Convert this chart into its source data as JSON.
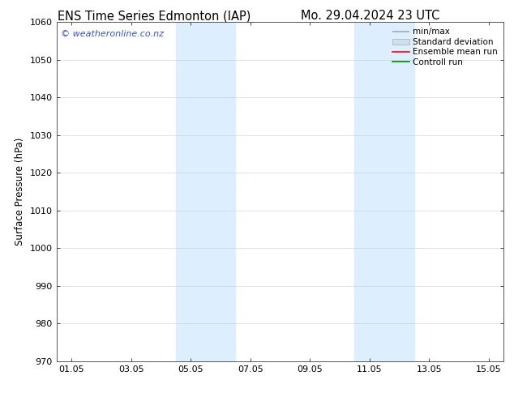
{
  "title_left": "ENS Time Series Edmonton (IAP)",
  "title_right": "Mo. 29.04.2024 23 UTC",
  "ylabel": "Surface Pressure (hPa)",
  "ylim": [
    970,
    1060
  ],
  "yticks": [
    970,
    980,
    990,
    1000,
    1010,
    1020,
    1030,
    1040,
    1050,
    1060
  ],
  "xtick_labels": [
    "01.05",
    "03.05",
    "05.05",
    "07.05",
    "09.05",
    "11.05",
    "13.05",
    "15.05"
  ],
  "xtick_positions": [
    0,
    2,
    4,
    6,
    8,
    10,
    12,
    14
  ],
  "xlim": [
    -0.5,
    14.5
  ],
  "shaded_bands": [
    {
      "xmin": 3.5,
      "xmax": 5.5
    },
    {
      "xmin": 9.5,
      "xmax": 11.5
    }
  ],
  "shade_color": "#ddeeff",
  "watermark_text": "© weatheronline.co.nz",
  "watermark_color": "#3355bb",
  "legend_entries": [
    "min/max",
    "Standard deviation",
    "Ensemble mean run",
    "Controll run"
  ],
  "legend_colors": [
    "#aaaaaa",
    "#cce0f0",
    "#ff0000",
    "#008800"
  ],
  "bg_color": "#ffffff",
  "plot_bg_color": "#ffffff",
  "grid_color": "#cccccc",
  "title_fontsize": 10.5,
  "tick_fontsize": 8,
  "ylabel_fontsize": 8.5,
  "watermark_fontsize": 8,
  "legend_fontsize": 7.5
}
